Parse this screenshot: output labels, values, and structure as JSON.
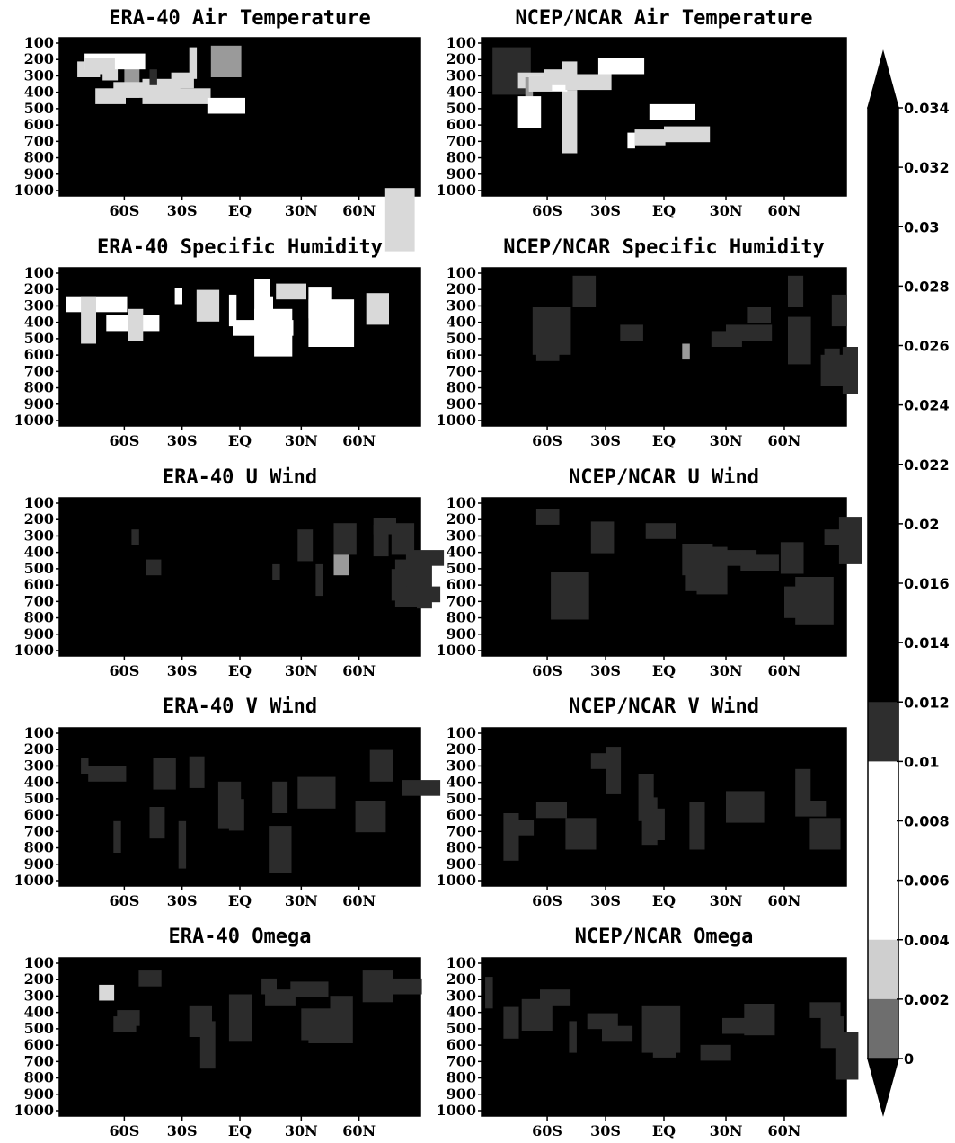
{
  "chart_data": {
    "type": "heatmap",
    "panels": [
      {
        "title": "ERA-40 Air Temperature",
        "patches": [
          [
            0.05,
            0.15,
            3,
            1,
            "L"
          ],
          [
            0.12,
            0.17,
            2,
            1,
            "L"
          ],
          [
            0.18,
            0.18,
            2,
            2,
            "M"
          ],
          [
            0.36,
            0.06,
            1,
            2,
            "L"
          ],
          [
            0.31,
            0.22,
            3,
            1,
            "L"
          ],
          [
            0.23,
            0.32,
            9,
            1,
            "L"
          ],
          [
            0.23,
            0.26,
            5,
            1,
            "L"
          ],
          [
            0.07,
            0.1,
            8,
            1,
            "W"
          ],
          [
            0.07,
            0.13,
            4,
            1,
            "L"
          ],
          [
            0.1,
            0.32,
            4,
            1,
            "L"
          ],
          [
            0.15,
            0.28,
            7,
            1,
            "L"
          ],
          [
            0.25,
            0.2,
            1,
            1,
            "D"
          ],
          [
            0.42,
            0.05,
            4,
            2,
            "M"
          ],
          [
            0.41,
            0.38,
            5,
            1,
            "W"
          ],
          [
            0.9,
            0.95,
            4,
            4,
            "L"
          ]
        ]
      },
      {
        "title": "NCEP/NCAR Air Temperature",
        "patches": [
          [
            0.03,
            0.06,
            5,
            3,
            "D"
          ],
          [
            0.1,
            0.22,
            5,
            1,
            "L"
          ],
          [
            0.12,
            0.25,
            1,
            3,
            "M"
          ],
          [
            0.4,
            0.6,
            1,
            1,
            "W"
          ],
          [
            0.42,
            0.58,
            4,
            1,
            "L"
          ],
          [
            0.46,
            0.42,
            6,
            1,
            "W"
          ],
          [
            0.5,
            0.56,
            6,
            1,
            "L"
          ],
          [
            0.22,
            0.33,
            2,
            4,
            "L"
          ],
          [
            0.13,
            0.24,
            5,
            1,
            "W"
          ],
          [
            0.13,
            0.24,
            3,
            1,
            "L"
          ],
          [
            0.1,
            0.37,
            3,
            2,
            "W"
          ],
          [
            0.17,
            0.2,
            3,
            1,
            "L"
          ],
          [
            0.23,
            0.23,
            6,
            1,
            "L"
          ],
          [
            0.22,
            0.15,
            2,
            1,
            "L"
          ],
          [
            0.32,
            0.13,
            6,
            1,
            "W"
          ]
        ]
      },
      {
        "title": "ERA-40 Specific Humidity",
        "patches": [
          [
            0.02,
            0.18,
            8,
            1,
            "W"
          ],
          [
            0.06,
            0.18,
            2,
            3,
            "L"
          ],
          [
            0.13,
            0.3,
            7,
            1,
            "W"
          ],
          [
            0.19,
            0.26,
            2,
            2,
            "L"
          ],
          [
            0.32,
            0.13,
            1,
            1,
            "W"
          ],
          [
            0.38,
            0.14,
            3,
            2,
            "L"
          ],
          [
            0.47,
            0.17,
            1,
            2,
            "W"
          ],
          [
            0.48,
            0.33,
            8,
            1,
            "W"
          ],
          [
            0.54,
            0.26,
            5,
            3,
            "W"
          ],
          [
            0.55,
            0.18,
            2,
            2,
            "W"
          ],
          [
            0.54,
            0.07,
            2,
            3,
            "W"
          ],
          [
            0.85,
            0.16,
            3,
            2,
            "L"
          ],
          [
            0.69,
            0.2,
            6,
            3,
            "W"
          ],
          [
            0.6,
            0.1,
            4,
            1,
            "L"
          ],
          [
            0.69,
            0.12,
            3,
            2,
            "W"
          ]
        ]
      },
      {
        "title": "NCEP/NCAR Specific Humidity",
        "patches": [
          [
            0.14,
            0.25,
            5,
            3,
            "D"
          ],
          [
            0.15,
            0.39,
            3,
            2,
            "D"
          ],
          [
            0.25,
            0.05,
            3,
            2,
            "D"
          ],
          [
            0.38,
            0.36,
            3,
            1,
            "D"
          ],
          [
            0.55,
            0.48,
            1,
            1,
            "M"
          ],
          [
            0.63,
            0.4,
            4,
            1,
            "D"
          ],
          [
            0.67,
            0.36,
            6,
            1,
            "D"
          ],
          [
            0.73,
            0.25,
            3,
            1,
            "D"
          ],
          [
            0.84,
            0.31,
            3,
            3,
            "D"
          ],
          [
            0.84,
            0.05,
            2,
            2,
            "D"
          ],
          [
            0.95,
            0.65,
            3,
            1,
            "D"
          ],
          [
            0.96,
            0.17,
            2,
            2,
            "D"
          ],
          [
            0.94,
            0.51,
            2,
            1,
            "D"
          ],
          [
            0.99,
            0.5,
            2,
            3,
            "D"
          ],
          [
            0.93,
            0.55,
            3,
            2,
            "D"
          ]
        ]
      },
      {
        "title": "ERA-40 U Wind",
        "patches": [
          [
            0.24,
            0.39,
            2,
            1,
            "D"
          ],
          [
            0.2,
            0.2,
            1,
            1,
            "D"
          ],
          [
            0.59,
            0.42,
            1,
            1,
            "D"
          ],
          [
            0.76,
            0.19,
            2,
            3,
            "M"
          ],
          [
            0.76,
            0.16,
            3,
            2,
            "D"
          ],
          [
            0.71,
            0.42,
            1,
            2,
            "D"
          ],
          [
            0.66,
            0.2,
            2,
            2,
            "D"
          ],
          [
            0.92,
            0.16,
            3,
            2,
            "D"
          ],
          [
            0.93,
            0.39,
            3,
            3,
            "D"
          ],
          [
            0.92,
            0.45,
            2,
            2,
            "D"
          ],
          [
            0.95,
            0.56,
            5,
            1,
            "D"
          ],
          [
            0.87,
            0.17,
            2,
            2,
            "D"
          ],
          [
            0.87,
            0.13,
            3,
            1,
            "D"
          ],
          [
            0.99,
            0.4,
            2,
            3,
            "D"
          ],
          [
            0.96,
            0.33,
            5,
            1,
            "D"
          ]
        ]
      },
      {
        "title": "NCEP/NCAR U Wind",
        "patches": [
          [
            0.15,
            0.07,
            3,
            1,
            "D"
          ],
          [
            0.19,
            0.47,
            5,
            3,
            "D"
          ],
          [
            0.3,
            0.15,
            3,
            2,
            "D"
          ],
          [
            0.45,
            0.16,
            4,
            1,
            "D"
          ],
          [
            0.56,
            0.39,
            4,
            2,
            "D"
          ],
          [
            0.61,
            0.32,
            2,
            2,
            "D"
          ],
          [
            0.55,
            0.29,
            4,
            2,
            "D"
          ],
          [
            0.59,
            0.31,
            4,
            3,
            "D"
          ],
          [
            0.67,
            0.33,
            4,
            1,
            "D"
          ],
          [
            0.71,
            0.36,
            5,
            1,
            "D"
          ],
          [
            0.82,
            0.28,
            3,
            2,
            "D"
          ],
          [
            0.94,
            0.2,
            4,
            1,
            "D"
          ],
          [
            0.86,
            0.5,
            5,
            3,
            "D"
          ],
          [
            0.98,
            0.12,
            3,
            3,
            "D"
          ],
          [
            0.83,
            0.56,
            2,
            2,
            "D"
          ]
        ]
      },
      {
        "title": "ERA-40 V Wind",
        "patches": [
          [
            0.06,
            0.19,
            1,
            1,
            "D"
          ],
          [
            0.08,
            0.24,
            5,
            1,
            "D"
          ],
          [
            0.15,
            0.59,
            1,
            2,
            "D"
          ],
          [
            0.25,
            0.5,
            2,
            2,
            "D"
          ],
          [
            0.26,
            0.19,
            3,
            2,
            "D"
          ],
          [
            0.33,
            0.59,
            1,
            3,
            "D"
          ],
          [
            0.36,
            0.18,
            2,
            2,
            "D"
          ],
          [
            0.44,
            0.34,
            3,
            3,
            "D"
          ],
          [
            0.47,
            0.45,
            2,
            2,
            "D"
          ],
          [
            0.59,
            0.34,
            2,
            2,
            "D"
          ],
          [
            0.58,
            0.62,
            3,
            3,
            "D"
          ],
          [
            0.66,
            0.31,
            5,
            2,
            "D"
          ],
          [
            0.82,
            0.46,
            4,
            2,
            "D"
          ],
          [
            0.86,
            0.14,
            3,
            2,
            "D"
          ],
          [
            0.95,
            0.33,
            5,
            1,
            "D"
          ]
        ]
      },
      {
        "title": "NCEP/NCAR V Wind",
        "patches": [
          [
            0.08,
            0.58,
            3,
            1,
            "D"
          ],
          [
            0.06,
            0.54,
            2,
            3,
            "D"
          ],
          [
            0.15,
            0.47,
            4,
            1,
            "D"
          ],
          [
            0.23,
            0.57,
            4,
            2,
            "D"
          ],
          [
            0.3,
            0.16,
            3,
            1,
            "D"
          ],
          [
            0.34,
            0.12,
            2,
            3,
            "D"
          ],
          [
            0.44,
            0.44,
            2,
            3,
            "D"
          ],
          [
            0.43,
            0.29,
            2,
            3,
            "D"
          ],
          [
            0.46,
            0.51,
            2,
            2,
            "D"
          ],
          [
            0.57,
            0.47,
            2,
            3,
            "D"
          ],
          [
            0.67,
            0.4,
            5,
            2,
            "D"
          ],
          [
            0.86,
            0.46,
            4,
            1,
            "D"
          ],
          [
            0.94,
            0.59,
            1,
            1,
            "D"
          ],
          [
            0.86,
            0.26,
            2,
            2,
            "D"
          ],
          [
            0.9,
            0.57,
            4,
            2,
            "D"
          ]
        ]
      },
      {
        "title": "ERA-40 Omega",
        "patches": [
          [
            0.11,
            0.17,
            2,
            1,
            "L"
          ],
          [
            0.16,
            0.33,
            3,
            1,
            "D"
          ],
          [
            0.15,
            0.37,
            3,
            1,
            "D"
          ],
          [
            0.22,
            0.08,
            3,
            1,
            "D"
          ],
          [
            0.36,
            0.3,
            3,
            2,
            "D"
          ],
          [
            0.39,
            0.4,
            2,
            3,
            "D"
          ],
          [
            0.47,
            0.23,
            3,
            3,
            "D"
          ],
          [
            0.57,
            0.2,
            4,
            1,
            "D"
          ],
          [
            0.56,
            0.13,
            2,
            1,
            "D"
          ],
          [
            0.64,
            0.15,
            5,
            1,
            "D"
          ],
          [
            0.67,
            0.32,
            4,
            2,
            "D"
          ],
          [
            0.69,
            0.34,
            3,
            2,
            "D"
          ],
          [
            0.75,
            0.24,
            3,
            3,
            "D"
          ],
          [
            0.84,
            0.08,
            4,
            2,
            "D"
          ],
          [
            0.92,
            0.13,
            4,
            1,
            "D"
          ]
        ]
      },
      {
        "title": "NCEP/NCAR Omega",
        "patches": [
          [
            0.01,
            0.12,
            1,
            2,
            "D"
          ],
          [
            0.06,
            0.31,
            2,
            2,
            "D"
          ],
          [
            0.16,
            0.2,
            4,
            1,
            "D"
          ],
          [
            0.11,
            0.26,
            4,
            2,
            "D"
          ],
          [
            0.24,
            0.4,
            1,
            2,
            "D"
          ],
          [
            0.29,
            0.35,
            4,
            1,
            "D"
          ],
          [
            0.33,
            0.43,
            4,
            1,
            "D"
          ],
          [
            0.44,
            0.3,
            5,
            3,
            "D"
          ],
          [
            0.47,
            0.33,
            3,
            3,
            "D"
          ],
          [
            0.6,
            0.55,
            4,
            1,
            "D"
          ],
          [
            0.66,
            0.38,
            4,
            1,
            "D"
          ],
          [
            0.72,
            0.29,
            4,
            2,
            "D"
          ],
          [
            0.9,
            0.28,
            4,
            1,
            "D"
          ],
          [
            0.93,
            0.37,
            3,
            2,
            "D"
          ],
          [
            0.97,
            0.47,
            3,
            3,
            "D"
          ]
        ]
      }
    ],
    "y_ticks": [
      "100",
      "200",
      "300",
      "400",
      "500",
      "600",
      "700",
      "800",
      "900",
      "1000"
    ],
    "x_ticks": [
      {
        "label": "60S",
        "pos": 0.18
      },
      {
        "label": "30S",
        "pos": 0.34
      },
      {
        "label": "EQ",
        "pos": 0.5
      },
      {
        "label": "30N",
        "pos": 0.67
      },
      {
        "label": "60N",
        "pos": 0.83
      }
    ],
    "colorbar": {
      "labels": [
        "0.034",
        "0.032",
        "0.03",
        "0.028",
        "0.026",
        "0.024",
        "0.022",
        "0.02",
        "0.016",
        "0.014",
        "0.012",
        "0.01",
        "0.008",
        "0.006",
        "0.004",
        "0.002",
        "0"
      ],
      "colors": [
        "#000000",
        "#000000",
        "#000000",
        "#000000",
        "#000000",
        "#000000",
        "#000000",
        "#000000",
        "#000000",
        "#000000",
        "#2e2e2e",
        "#ffffff",
        "#ffffff",
        "#ffffff",
        "#cfcfcf",
        "#6e6e6e",
        "#000000"
      ]
    },
    "shade_colors": {
      "W": "#ffffff",
      "L": "#d9d9d9",
      "M": "#9a9a9a",
      "D": "#2c2c2c"
    },
    "field_color": "#000000"
  }
}
